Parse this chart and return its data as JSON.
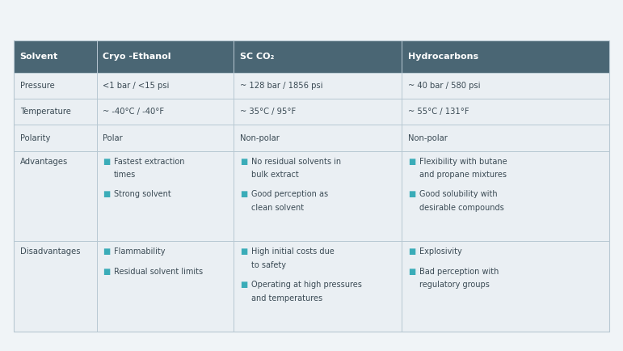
{
  "bg_outer": "#f0f4f7",
  "bg_table": "#e8edf2",
  "header_color": "#4a6674",
  "header_text_color": "#ffffff",
  "cell_bg_color": "#eaeff3",
  "row_line_color": "#b8c8d2",
  "body_text_color": "#3a4a54",
  "bullet_color": "#3aacb8",
  "header_row": [
    "Solvent",
    "Cryo -Ethanol",
    "SC CO₂",
    "Hydrocarbons"
  ],
  "simple_rows": [
    {
      "label": "Pressure",
      "c1": "<1 bar / <15 psi",
      "c2": "~ 128 bar / 1856 psi",
      "c3": "~ 40 bar / 580 psi"
    },
    {
      "label": "Temperature",
      "c1": "~ -40°C / -40°F",
      "c2": "~ 35°C / 95°F",
      "c3": "~ 55°C / 131°F"
    },
    {
      "label": "Polarity",
      "c1": "Polar",
      "c2": "Non-polar",
      "c3": "Non-polar"
    }
  ],
  "adv_label": "Advantages",
  "adv_bullets": [
    [
      "Fastest extraction",
      "times",
      "Strong solvent"
    ],
    [
      "No residual solvents in",
      "bulk extract",
      "Good perception as",
      "clean solvent"
    ],
    [
      "Flexibility with butane",
      "and propane mixtures",
      "Good solubility with",
      "desirable compounds"
    ]
  ],
  "dis_label": "Disadvantages",
  "dis_bullets": [
    [
      "Flammability",
      "Residual solvent limits"
    ],
    [
      "High initial costs due",
      "to safety",
      "Operating at high pressures",
      "and temperatures"
    ],
    [
      "Explosivity",
      "Bad perception with",
      "regulatory groups"
    ]
  ],
  "figsize": [
    7.71,
    4.34
  ],
  "dpi": 100
}
